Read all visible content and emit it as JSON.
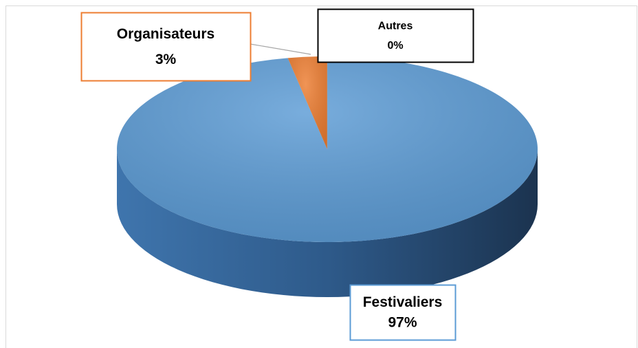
{
  "chart_data": {
    "type": "pie",
    "categories": [
      "Festivaliers",
      "Organisateurs",
      "Autres"
    ],
    "values": [
      97,
      3,
      0
    ],
    "value_labels": [
      "97%",
      "3%",
      "0%"
    ],
    "colors": [
      "#5b9bd5",
      "#ed7d31",
      "#a5a5a5"
    ]
  }
}
